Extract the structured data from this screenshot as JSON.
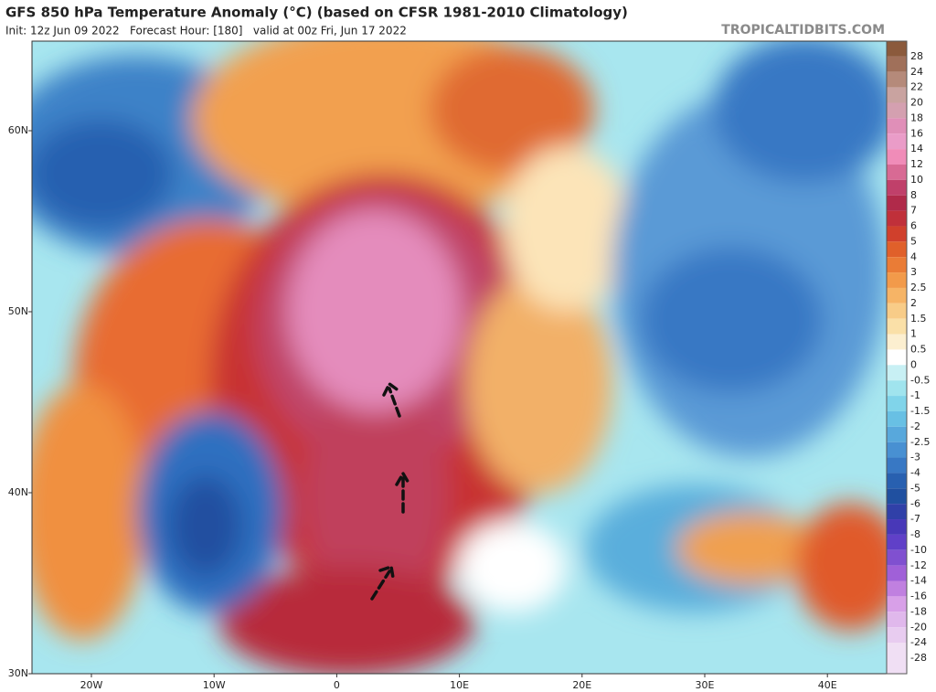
{
  "header": {
    "title": "GFS 850 hPa Temperature Anomaly (°C) (based on CFSR 1981-2010 Climatology)",
    "subtitle": "Init: 12z Jun 09 2022   Forecast Hour: [180]   valid at 00z Fri, Jun 17 2022",
    "brand": "TROPICALTIDBITS.COM"
  },
  "map": {
    "lat_labels": [
      "60N",
      "50N",
      "40N",
      "30N"
    ],
    "lon_labels": [
      "20W",
      "10W",
      "0",
      "10E",
      "20E",
      "30E",
      "40E"
    ]
  },
  "colorbar": [
    {
      "label": "28",
      "color": "#8b5a3c"
    },
    {
      "label": "24",
      "color": "#a0705a"
    },
    {
      "label": "22",
      "color": "#b58a7a"
    },
    {
      "label": "20",
      "color": "#c9a3a0"
    },
    {
      "label": "18",
      "color": "#d4a0b0"
    },
    {
      "label": "16",
      "color": "#e08fb8"
    },
    {
      "label": "14",
      "color": "#ea9cc8"
    },
    {
      "label": "12",
      "color": "#f08cb8"
    },
    {
      "label": "10",
      "color": "#d86a94"
    },
    {
      "label": "8",
      "color": "#c0406a"
    },
    {
      "label": "7",
      "color": "#b02a4a"
    },
    {
      "label": "6",
      "color": "#c0303a"
    },
    {
      "label": "5",
      "color": "#d0402c"
    },
    {
      "label": "4",
      "color": "#e0602a"
    },
    {
      "label": "3",
      "color": "#ea7c36"
    },
    {
      "label": "2.5",
      "color": "#f29a4a"
    },
    {
      "label": "2",
      "color": "#f6b466"
    },
    {
      "label": "1.5",
      "color": "#f8cc88"
    },
    {
      "label": "1",
      "color": "#fae0a8"
    },
    {
      "label": "0.5",
      "color": "#fcefd0"
    },
    {
      "label": "0",
      "color": "#ffffff"
    },
    {
      "label": "-0.5",
      "color": "#c8f0f4"
    },
    {
      "label": "-1",
      "color": "#a0e4ee"
    },
    {
      "label": "-1.5",
      "color": "#80d4ea"
    },
    {
      "label": "-2",
      "color": "#68c0e4"
    },
    {
      "label": "-2.5",
      "color": "#58a8dc"
    },
    {
      "label": "-3",
      "color": "#4890d2"
    },
    {
      "label": "-4",
      "color": "#3878c4"
    },
    {
      "label": "-5",
      "color": "#2860b0"
    },
    {
      "label": "-6",
      "color": "#2050a0"
    },
    {
      "label": "-7",
      "color": "#3040a8"
    },
    {
      "label": "-8",
      "color": "#4838b8"
    },
    {
      "label": "-10",
      "color": "#6040c8"
    },
    {
      "label": "-12",
      "color": "#8050d0"
    },
    {
      "label": "-14",
      "color": "#a060d8"
    },
    {
      "label": "-16",
      "color": "#c080e0"
    },
    {
      "label": "-18",
      "color": "#d8a0e8"
    },
    {
      "label": "-20",
      "color": "#e0b8ec"
    },
    {
      "label": "-24",
      "color": "#e8ccf0"
    },
    {
      "label": "-28",
      "color": "#f0dff4"
    }
  ]
}
